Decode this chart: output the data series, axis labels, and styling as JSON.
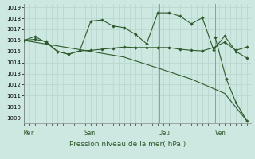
{
  "title": "Pression niveau de la mer( hPa )",
  "bg_color": "#cde8e0",
  "grid_color": "#b8d8d0",
  "line_color": "#2d5a2d",
  "ylim": [
    1009,
    1019
  ],
  "yticks": [
    1009,
    1010,
    1011,
    1012,
    1013,
    1014,
    1015,
    1016,
    1017,
    1018,
    1019
  ],
  "vlines_x": [
    30,
    105,
    200,
    270
  ],
  "xlabels": [
    "Mer",
    "Sam",
    "Jeu",
    "Ven"
  ],
  "xlabels_x": [
    30,
    105,
    200,
    270
  ],
  "series1_x": [
    30,
    44,
    58,
    72,
    86,
    100,
    114,
    128,
    142,
    156,
    170,
    184,
    198,
    212,
    226,
    240,
    254,
    268,
    282,
    296,
    310
  ],
  "series1_y": [
    1016.0,
    1016.1,
    1015.9,
    1015.0,
    1014.75,
    1015.05,
    1015.1,
    1015.2,
    1015.3,
    1015.4,
    1015.35,
    1015.35,
    1015.35,
    1015.35,
    1015.2,
    1015.1,
    1015.05,
    1015.35,
    1015.85,
    1015.1,
    1015.4
  ],
  "series2_x": [
    30,
    44,
    58,
    72,
    86,
    100,
    114,
    128,
    142,
    156,
    170,
    184,
    198,
    212,
    226,
    240,
    254,
    268,
    282,
    296,
    310
  ],
  "series2_y": [
    1016.0,
    1016.35,
    1015.8,
    1015.0,
    1014.75,
    1015.05,
    1017.75,
    1017.85,
    1017.3,
    1017.15,
    1016.55,
    1015.7,
    1018.5,
    1018.5,
    1018.2,
    1017.5,
    1018.05,
    1015.15,
    1016.4,
    1015.0,
    1014.4
  ],
  "series3_x": [
    30,
    72,
    114,
    155,
    198,
    240,
    282,
    310
  ],
  "series3_y": [
    1016.0,
    1015.5,
    1015.0,
    1014.5,
    1013.5,
    1012.5,
    1011.2,
    1008.7
  ],
  "series4_x": [
    270,
    284,
    296,
    310
  ],
  "series4_y": [
    1016.3,
    1012.5,
    1010.4,
    1008.7
  ]
}
